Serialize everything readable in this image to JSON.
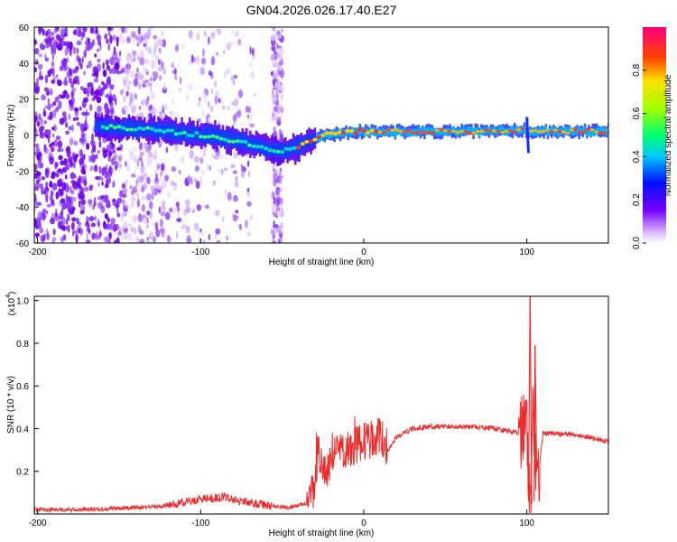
{
  "title": "GN04.2026.026.17.40.E27",
  "chart_data": [
    {
      "type": "heatmap",
      "xlabel": "Height of straight line (km)",
      "ylabel": "Frequency (Hz)",
      "xlim": [
        -202,
        150
      ],
      "ylim": [
        -60,
        60
      ],
      "xticks": [
        -200,
        -100,
        0,
        100
      ],
      "yticks": [
        60,
        40,
        20,
        0,
        -20,
        -40,
        -60
      ],
      "colorbar": {
        "label": "Normalized spectral amplitude",
        "range": [
          0,
          1
        ],
        "ticks": [
          0.0,
          0.2,
          0.4,
          0.6,
          0.8
        ]
      },
      "ridge_x": [
        -165,
        -150,
        -130,
        -110,
        -90,
        -75,
        -60,
        -52,
        -45,
        -35,
        -25,
        -15,
        -5,
        10,
        40,
        80,
        98,
        100,
        102,
        110,
        150
      ],
      "ridge_y": [
        5,
        4,
        3,
        1,
        -1,
        -4,
        -7,
        -9,
        -8,
        -4,
        0,
        1,
        2,
        2,
        2,
        2,
        3,
        0,
        2,
        2,
        2
      ]
    },
    {
      "type": "line",
      "xlabel": "Height of straight line (km)",
      "ylabel": "SNR (10 * v/v)",
      "scale_label": "(x10",
      "scale_exp": "4",
      "xlim": [
        -202,
        150
      ],
      "ylim": [
        0,
        1.02
      ],
      "xticks": [
        -200,
        -100,
        0,
        100
      ],
      "yticks": [
        "0.2",
        "0.4",
        "0.6",
        "0.8",
        "1.0"
      ],
      "series": [
        {
          "name": "SNR",
          "color": "#ee2a2a",
          "x": [
            -202,
            -170,
            -140,
            -120,
            -100,
            -85,
            -75,
            -60,
            -45,
            -35,
            -30,
            -28,
            -25,
            -20,
            -15,
            -10,
            -5,
            0,
            5,
            10,
            15,
            20,
            30,
            40,
            60,
            80,
            95,
            100,
            102,
            104,
            106,
            110,
            130,
            150
          ],
          "y": [
            0.02,
            0.02,
            0.03,
            0.04,
            0.07,
            0.08,
            0.06,
            0.04,
            0.03,
            0.05,
            0.12,
            0.3,
            0.18,
            0.25,
            0.3,
            0.28,
            0.32,
            0.34,
            0.35,
            0.37,
            0.3,
            0.36,
            0.4,
            0.41,
            0.41,
            0.4,
            0.38,
            0.45,
            0.05,
            0.6,
            0.1,
            0.38,
            0.37,
            0.34
          ]
        }
      ]
    }
  ]
}
